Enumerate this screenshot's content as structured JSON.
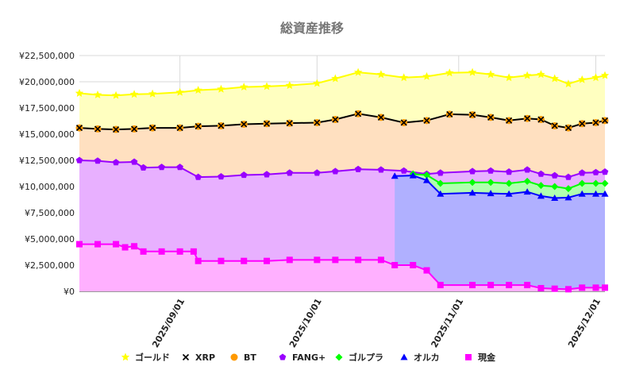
{
  "chart_data": {
    "type": "area",
    "title": "総資産推移",
    "yunit": "¥",
    "ylim": [
      0,
      22500000
    ],
    "yticks": [
      "¥0",
      "¥2,500,000",
      "¥5,000,000",
      "¥7,500,000",
      "¥10,000,000",
      "¥12,500,000",
      "¥15,000,000",
      "¥17,500,000",
      "¥20,000,000",
      "¥22,500,000"
    ],
    "xlim": [
      "2025-08-10",
      "2025-12-03"
    ],
    "xticks": [
      {
        "label": "2025/09/01",
        "date": "2025-09-01"
      },
      {
        "label": "2025/10/01",
        "date": "2025-10-01"
      },
      {
        "label": "2025/11/01",
        "date": "2025-11-01"
      },
      {
        "label": "2025/12/01",
        "date": "2025-12-01"
      }
    ],
    "grid": true,
    "legend_position": "bottom",
    "stacked": true,
    "series": [
      {
        "name": "ゴールド",
        "color": "#ffff00",
        "fill": "#ffffc0",
        "marker": "star",
        "points": [
          [
            "2025-08-10",
            18900000
          ],
          [
            "2025-08-14",
            18750000
          ],
          [
            "2025-08-18",
            18700000
          ],
          [
            "2025-08-22",
            18800000
          ],
          [
            "2025-08-26",
            18850000
          ],
          [
            "2025-09-01",
            19000000
          ],
          [
            "2025-09-05",
            19200000
          ],
          [
            "2025-09-10",
            19300000
          ],
          [
            "2025-09-15",
            19500000
          ],
          [
            "2025-09-20",
            19550000
          ],
          [
            "2025-09-25",
            19650000
          ],
          [
            "2025-10-01",
            19850000
          ],
          [
            "2025-10-05",
            20300000
          ],
          [
            "2025-10-10",
            20900000
          ],
          [
            "2025-10-15",
            20700000
          ],
          [
            "2025-10-20",
            20400000
          ],
          [
            "2025-10-25",
            20500000
          ],
          [
            "2025-10-30",
            20850000
          ],
          [
            "2025-11-04",
            20900000
          ],
          [
            "2025-11-08",
            20700000
          ],
          [
            "2025-11-12",
            20400000
          ],
          [
            "2025-11-16",
            20600000
          ],
          [
            "2025-11-19",
            20700000
          ],
          [
            "2025-11-22",
            20300000
          ],
          [
            "2025-11-25",
            19800000
          ],
          [
            "2025-11-28",
            20200000
          ],
          [
            "2025-12-01",
            20400000
          ],
          [
            "2025-12-03",
            20600000
          ]
        ]
      },
      {
        "name": "XRP",
        "color": "#000000",
        "fill": "#ffe0c0",
        "marker": "x",
        "points": [
          [
            "2025-08-10",
            15600000
          ],
          [
            "2025-08-14",
            15500000
          ],
          [
            "2025-08-18",
            15450000
          ],
          [
            "2025-08-22",
            15500000
          ],
          [
            "2025-08-26",
            15600000
          ],
          [
            "2025-09-01",
            15600000
          ],
          [
            "2025-09-05",
            15750000
          ],
          [
            "2025-09-10",
            15800000
          ],
          [
            "2025-09-15",
            15950000
          ],
          [
            "2025-09-20",
            16000000
          ],
          [
            "2025-09-25",
            16050000
          ],
          [
            "2025-10-01",
            16100000
          ],
          [
            "2025-10-05",
            16400000
          ],
          [
            "2025-10-10",
            16950000
          ],
          [
            "2025-10-15",
            16600000
          ],
          [
            "2025-10-20",
            16100000
          ],
          [
            "2025-10-25",
            16300000
          ],
          [
            "2025-10-30",
            16900000
          ],
          [
            "2025-11-04",
            16850000
          ],
          [
            "2025-11-08",
            16600000
          ],
          [
            "2025-11-12",
            16300000
          ],
          [
            "2025-11-16",
            16500000
          ],
          [
            "2025-11-19",
            16400000
          ],
          [
            "2025-11-22",
            15800000
          ],
          [
            "2025-11-25",
            15600000
          ],
          [
            "2025-11-28",
            16000000
          ],
          [
            "2025-12-01",
            16100000
          ],
          [
            "2025-12-03",
            16300000
          ]
        ]
      },
      {
        "name": "BT",
        "color": "#ff9900",
        "fill": "#ffe0c0",
        "marker": "circle",
        "points": []
      },
      {
        "name": "FANG+",
        "color": "#9900ff",
        "fill": "#e8b0ff",
        "marker": "pentagon",
        "points": [
          [
            "2025-08-10",
            12500000
          ],
          [
            "2025-08-14",
            12450000
          ],
          [
            "2025-08-18",
            12300000
          ],
          [
            "2025-08-22",
            12350000
          ],
          [
            "2025-08-24",
            11800000
          ],
          [
            "2025-08-28",
            11850000
          ],
          [
            "2025-09-01",
            11850000
          ],
          [
            "2025-09-05",
            10900000
          ],
          [
            "2025-09-10",
            10950000
          ],
          [
            "2025-09-15",
            11100000
          ],
          [
            "2025-09-20",
            11150000
          ],
          [
            "2025-09-25",
            11300000
          ],
          [
            "2025-10-01",
            11300000
          ],
          [
            "2025-10-05",
            11450000
          ],
          [
            "2025-10-10",
            11650000
          ],
          [
            "2025-10-15",
            11600000
          ],
          [
            "2025-10-20",
            11500000
          ],
          [
            "2025-10-25",
            11200000
          ],
          [
            "2025-10-28",
            11300000
          ],
          [
            "2025-11-04",
            11450000
          ],
          [
            "2025-11-08",
            11500000
          ],
          [
            "2025-11-12",
            11400000
          ],
          [
            "2025-11-16",
            11600000
          ],
          [
            "2025-11-19",
            11200000
          ],
          [
            "2025-11-22",
            11050000
          ],
          [
            "2025-11-25",
            10900000
          ],
          [
            "2025-11-28",
            11300000
          ],
          [
            "2025-12-01",
            11350000
          ],
          [
            "2025-12-03",
            11400000
          ]
        ]
      },
      {
        "name": "ゴルプラ",
        "color": "#00ff00",
        "fill": "#b0ffb0",
        "marker": "diamond",
        "points": [
          [
            "2025-10-22",
            11200000
          ],
          [
            "2025-10-25",
            11100000
          ],
          [
            "2025-10-28",
            10300000
          ],
          [
            "2025-11-04",
            10400000
          ],
          [
            "2025-11-08",
            10400000
          ],
          [
            "2025-11-12",
            10300000
          ],
          [
            "2025-11-16",
            10500000
          ],
          [
            "2025-11-19",
            10100000
          ],
          [
            "2025-11-22",
            10000000
          ],
          [
            "2025-11-25",
            9800000
          ],
          [
            "2025-11-28",
            10300000
          ],
          [
            "2025-12-01",
            10300000
          ],
          [
            "2025-12-03",
            10300000
          ]
        ]
      },
      {
        "name": "オルカ",
        "color": "#0000ff",
        "fill": "#b0b0ff",
        "marker": "triangle",
        "points": [
          [
            "2025-10-18",
            11000000
          ],
          [
            "2025-10-22",
            11050000
          ],
          [
            "2025-10-25",
            10600000
          ],
          [
            "2025-10-28",
            9300000
          ],
          [
            "2025-11-04",
            9400000
          ],
          [
            "2025-11-08",
            9350000
          ],
          [
            "2025-11-12",
            9300000
          ],
          [
            "2025-11-16",
            9500000
          ],
          [
            "2025-11-19",
            9100000
          ],
          [
            "2025-11-22",
            8900000
          ],
          [
            "2025-11-25",
            8950000
          ],
          [
            "2025-11-28",
            9300000
          ],
          [
            "2025-12-01",
            9300000
          ],
          [
            "2025-12-03",
            9300000
          ]
        ]
      },
      {
        "name": "現金",
        "color": "#ff00ff",
        "fill": "#ffb0ff",
        "marker": "square",
        "points": [
          [
            "2025-08-10",
            4500000
          ],
          [
            "2025-08-14",
            4500000
          ],
          [
            "2025-08-18",
            4500000
          ],
          [
            "2025-08-20",
            4200000
          ],
          [
            "2025-08-22",
            4300000
          ],
          [
            "2025-08-24",
            3800000
          ],
          [
            "2025-08-28",
            3800000
          ],
          [
            "2025-09-01",
            3800000
          ],
          [
            "2025-09-04",
            3800000
          ],
          [
            "2025-09-05",
            2900000
          ],
          [
            "2025-09-10",
            2900000
          ],
          [
            "2025-09-15",
            2900000
          ],
          [
            "2025-09-20",
            2900000
          ],
          [
            "2025-09-25",
            3000000
          ],
          [
            "2025-10-01",
            3000000
          ],
          [
            "2025-10-05",
            3000000
          ],
          [
            "2025-10-10",
            3000000
          ],
          [
            "2025-10-15",
            3000000
          ],
          [
            "2025-10-18",
            2500000
          ],
          [
            "2025-10-22",
            2500000
          ],
          [
            "2025-10-25",
            2000000
          ],
          [
            "2025-10-28",
            600000
          ],
          [
            "2025-11-04",
            600000
          ],
          [
            "2025-11-08",
            600000
          ],
          [
            "2025-11-12",
            600000
          ],
          [
            "2025-11-16",
            600000
          ],
          [
            "2025-11-19",
            300000
          ],
          [
            "2025-11-22",
            250000
          ],
          [
            "2025-11-25",
            200000
          ],
          [
            "2025-11-28",
            350000
          ],
          [
            "2025-12-01",
            350000
          ],
          [
            "2025-12-03",
            350000
          ]
        ]
      }
    ]
  }
}
